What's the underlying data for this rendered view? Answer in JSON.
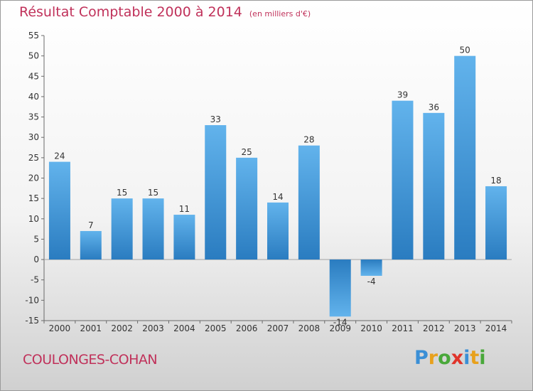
{
  "header": {
    "title": "Résultat Comptable 2000 à 2014",
    "unit": "(en milliers d'€)"
  },
  "footer": {
    "commune": "COULONGES-COHAN",
    "logo_letters": [
      "P",
      "r",
      "o",
      "x",
      "i",
      "t",
      "i"
    ],
    "logo_colors": [
      "#3a8fd6",
      "#e8a11c",
      "#49a83a",
      "#e0342b",
      "#3a8fd6",
      "#e8a11c",
      "#49a83a"
    ]
  },
  "colors": {
    "bar_light": "#62b3ec",
    "bar_dark": "#2a7cc0",
    "title": "#c0315a"
  },
  "chart_data": {
    "type": "bar",
    "title": "Résultat Comptable 2000 à 2014",
    "subtitle": "(en milliers d'€)",
    "xlabel": "",
    "ylabel": "",
    "categories": [
      "2000",
      "2001",
      "2002",
      "2003",
      "2004",
      "2005",
      "2006",
      "2007",
      "2008",
      "2009",
      "2010",
      "2011",
      "2012",
      "2013",
      "2014"
    ],
    "values": [
      24,
      7,
      15,
      15,
      11,
      33,
      25,
      14,
      28,
      -14,
      -4,
      39,
      36,
      50,
      18
    ],
    "data_labels": [
      "24",
      "7",
      "15",
      "15",
      "11",
      "33",
      "25",
      "14",
      "28",
      "-14",
      "-4",
      "39",
      "36",
      "50",
      "18"
    ],
    "ylim": [
      -15,
      55
    ],
    "yticks": [
      -15,
      -10,
      -5,
      0,
      5,
      10,
      15,
      20,
      25,
      30,
      35,
      40,
      45,
      50,
      55
    ],
    "ytick_labels": [
      "-15",
      "-10",
      "-5",
      "0",
      "5",
      "10",
      "15",
      "20",
      "25",
      "30",
      "35",
      "40",
      "45",
      "50",
      "55"
    ],
    "grid": false,
    "legend": "none"
  }
}
